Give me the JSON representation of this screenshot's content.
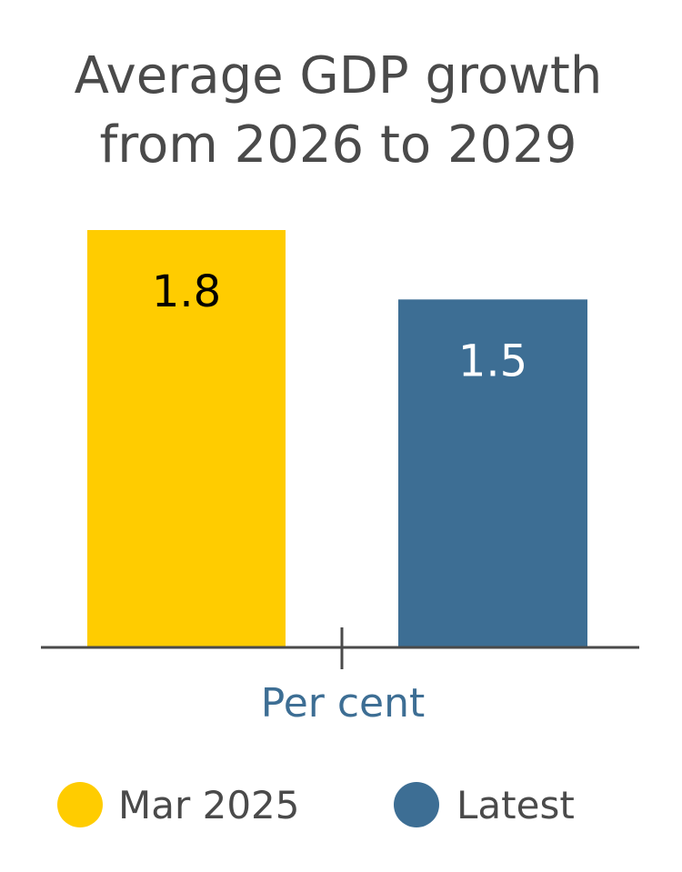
{
  "chart_data": {
    "type": "bar",
    "title_lines": [
      "Average GDP growth",
      "from 2026 to 2029"
    ],
    "categories": [
      "Mar 2025",
      "Latest"
    ],
    "values": [
      1.8,
      1.5
    ],
    "value_labels": [
      "1.8",
      "1.5"
    ],
    "colors": [
      "#FFCC00",
      "#3D6E94"
    ],
    "label_colors": [
      "#000000",
      "#ffffff"
    ],
    "xlabel": "Per cent",
    "xlabel_color": "#3D6E94",
    "axis_color": "#4a4a4a",
    "ylim": [
      0,
      1.8
    ],
    "grid": false,
    "legend_position": "bottom",
    "legend": [
      {
        "label": "Mar 2025",
        "color": "#FFCC00"
      },
      {
        "label": "Latest",
        "color": "#3D6E94"
      }
    ]
  }
}
